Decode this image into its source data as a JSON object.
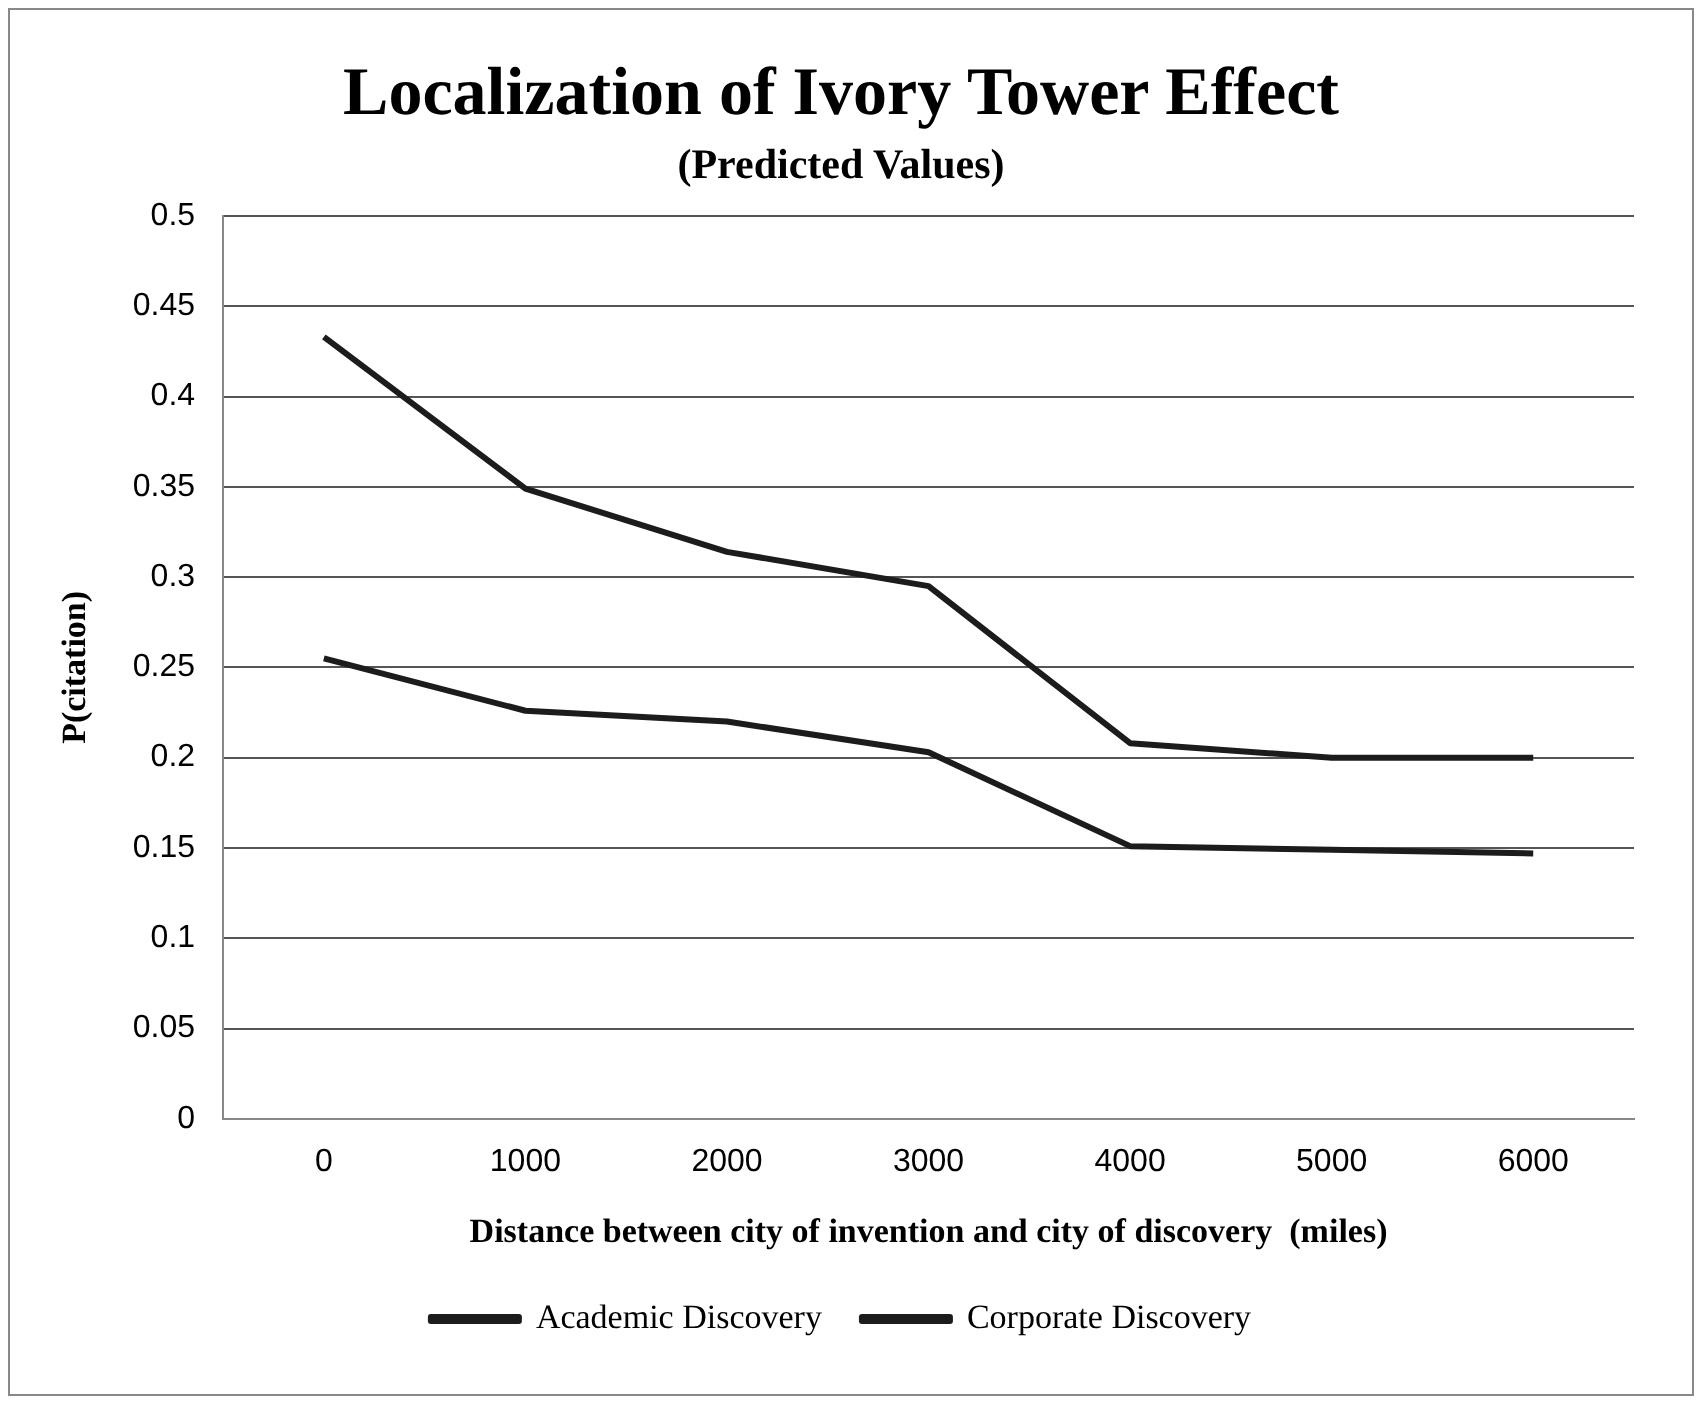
{
  "chart_data": {
    "type": "line",
    "title": "Localization of Ivory Tower Effect",
    "subtitle": "(Predicted Values)",
    "xlabel": "Distance between city of invention and city of discovery  (miles)",
    "ylabel": "P(citation)",
    "categories": [
      "0",
      "1000",
      "2000",
      "3000",
      "4000",
      "5000",
      "6000"
    ],
    "series": [
      {
        "name": "Academic Discovery",
        "color": "#1c1c1c",
        "values": [
          0.433,
          0.349,
          0.314,
          0.295,
          0.208,
          0.2,
          0.2
        ]
      },
      {
        "name": "Corporate Discovery",
        "color": "#1c1c1c",
        "values": [
          0.255,
          0.226,
          0.22,
          0.203,
          0.151,
          0.149,
          0.147
        ]
      }
    ],
    "ylim": [
      0,
      0.5
    ],
    "yticks": [
      0,
      0.05,
      0.1,
      0.15,
      0.2,
      0.25,
      0.3,
      0.35,
      0.4,
      0.45,
      0.5
    ],
    "grid": "y",
    "legend": "bottom",
    "marker": "none",
    "line_style": "solid"
  }
}
